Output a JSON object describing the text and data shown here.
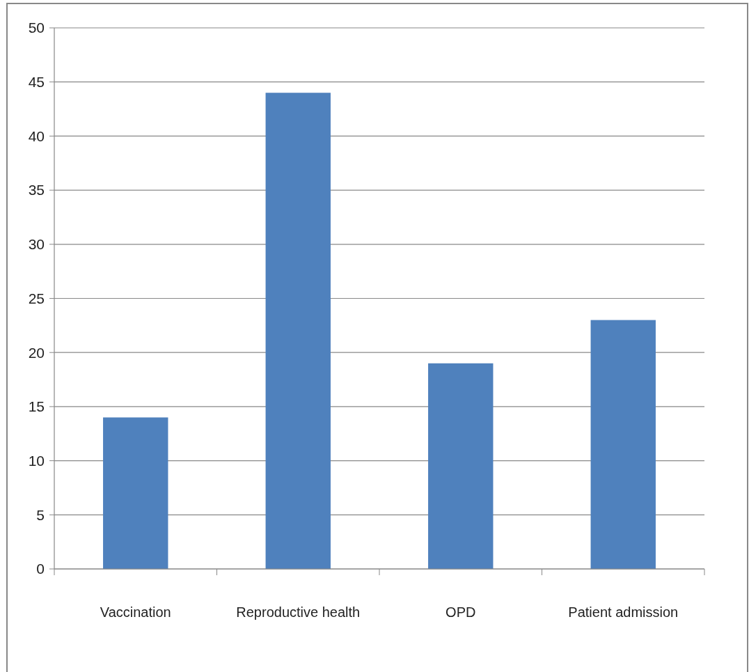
{
  "chart_data": {
    "type": "bar",
    "categories": [
      "Vaccination",
      "Reproductive health",
      "OPD",
      "Patient admission"
    ],
    "values": [
      14,
      44,
      19,
      23
    ],
    "color": "#4f81bd",
    "ylim": [
      0,
      50
    ],
    "yticks": [
      0,
      5,
      10,
      15,
      20,
      25,
      30,
      35,
      40,
      45,
      50
    ],
    "grid": "y"
  }
}
